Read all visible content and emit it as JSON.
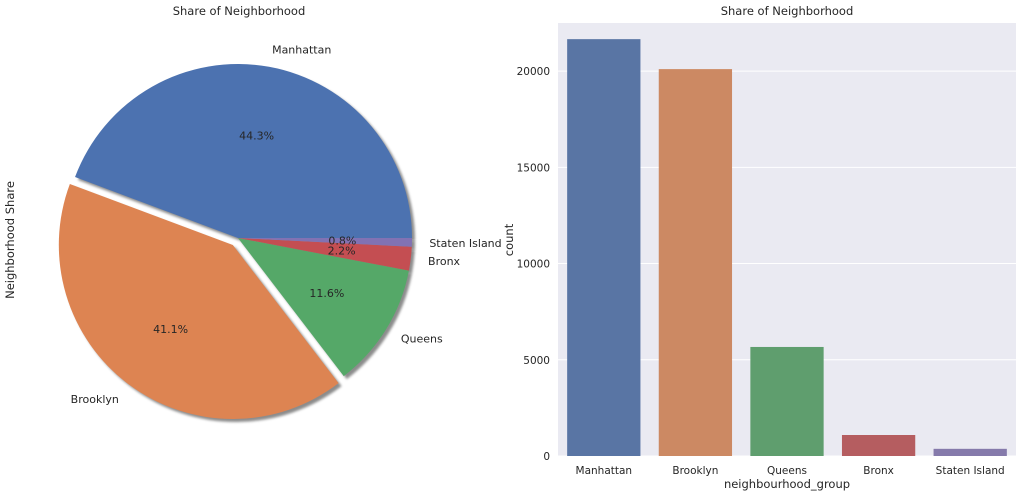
{
  "chart_data": [
    {
      "type": "pie",
      "title": "Share of Neighborhood",
      "ylabel": "Neighborhood Share",
      "categories": [
        "Manhattan",
        "Brooklyn",
        "Queens",
        "Bronx",
        "Staten Island"
      ],
      "values": [
        44.3,
        41.1,
        11.6,
        2.2,
        0.8
      ],
      "value_labels": [
        "44.3%",
        "41.1%",
        "11.6%",
        "2.2%",
        "0.8%"
      ],
      "exploded": [
        "Brooklyn"
      ],
      "shadow": true,
      "colors": [
        "#4c72b0",
        "#dd8452",
        "#55a868",
        "#c44e52",
        "#8172b3"
      ]
    },
    {
      "type": "bar",
      "title": "Share of Neighborhood",
      "xlabel": "neighbourhood_group",
      "ylabel": "count",
      "categories": [
        "Manhattan",
        "Brooklyn",
        "Queens",
        "Bronx",
        "Staten Island"
      ],
      "values": [
        21661,
        20104,
        5666,
        1091,
        373
      ],
      "ylim": [
        0,
        22500
      ],
      "yticks": [
        0,
        5000,
        10000,
        15000,
        20000
      ],
      "ytick_labels": [
        "0",
        "5000",
        "10000",
        "15000",
        "20000"
      ],
      "grid": true,
      "background": "#eaeaf2",
      "colors": [
        "#5975a4",
        "#cc8963",
        "#5f9e6e",
        "#b55d60",
        "#857aab"
      ]
    }
  ]
}
